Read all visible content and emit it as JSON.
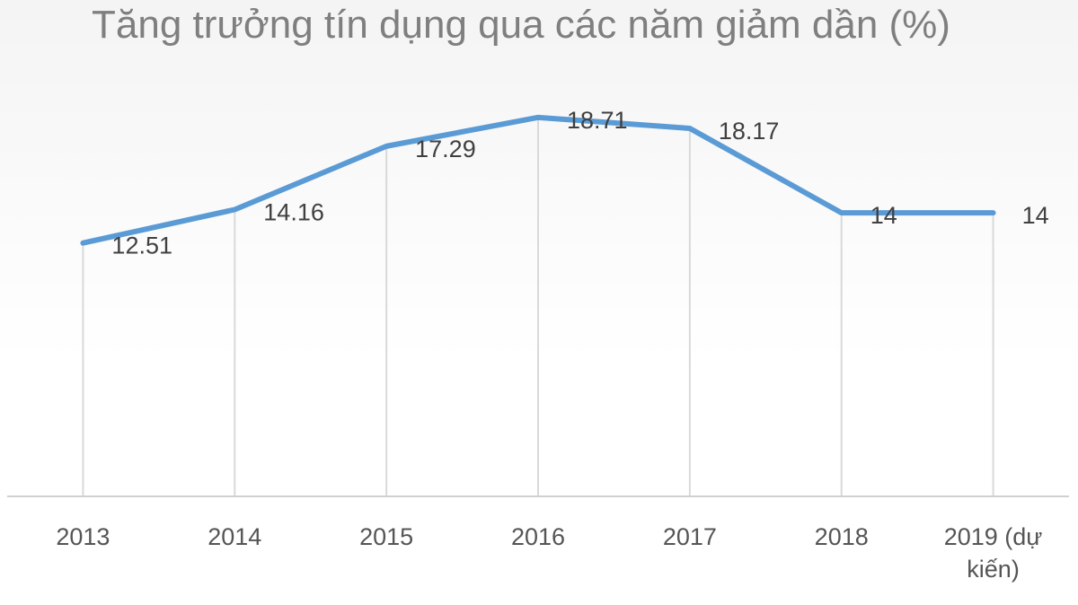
{
  "chart_data": {
    "type": "line",
    "title": "Tăng trưởng tín dụng qua các năm giảm dần (%)",
    "categories": [
      "2013",
      "2014",
      "2015",
      "2016",
      "2017",
      "2018",
      "2019 (dự kiến)"
    ],
    "category_lines": [
      [
        "2013"
      ],
      [
        "2014"
      ],
      [
        "2015"
      ],
      [
        "2016"
      ],
      [
        "2017"
      ],
      [
        "2018"
      ],
      [
        "2019 (dự",
        "kiến)"
      ]
    ],
    "series": [
      {
        "values": [
          12.51,
          14.16,
          17.29,
          18.71,
          18.17,
          14,
          14
        ],
        "color": "#5b9bd5"
      }
    ],
    "data_labels": [
      "12.51",
      "14.16",
      "17.29",
      "18.71",
      "18.17",
      "14",
      "14"
    ],
    "ylim": [
      0,
      19.5
    ],
    "grid": "vertical",
    "legend": "none"
  }
}
